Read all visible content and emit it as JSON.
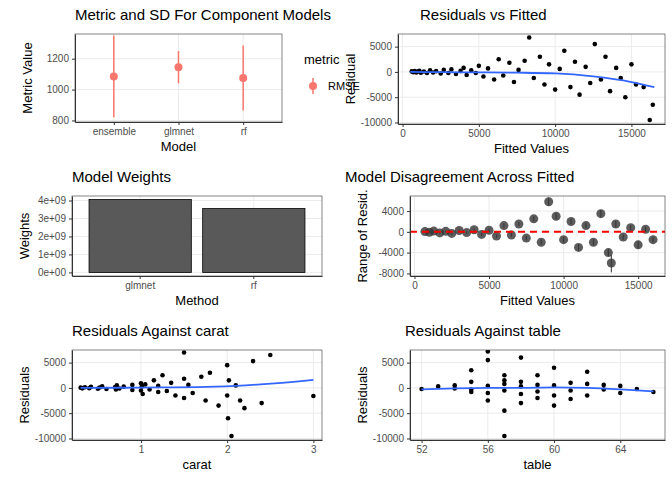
{
  "chart_data": [
    {
      "type": "pointrange",
      "title": "Metric and SD For Component Models",
      "x_label": "Model",
      "y_label": "Metric Value",
      "categories": [
        "ensemble",
        "glmnet",
        "rf"
      ],
      "series": [
        {
          "name": "RMSE",
          "color": "#f8766d",
          "values": [
            1085,
            1145,
            1075
          ],
          "sd": [
            265,
            105,
            210
          ]
        }
      ],
      "legend_title": "metric",
      "legend": "right",
      "ylim": [
        790,
        1360
      ],
      "yticks": [
        800,
        1000,
        1200
      ],
      "grid": true
    },
    {
      "type": "scatter",
      "title": "Residuals vs Fitted",
      "x_label": "Fitted Values",
      "y_label": "Residual",
      "color": "#000000",
      "x": [
        600,
        700,
        800,
        900,
        1000,
        1100,
        1200,
        1400,
        1600,
        1800,
        2000,
        2200,
        2500,
        2700,
        3000,
        3200,
        3500,
        3800,
        4000,
        4200,
        4500,
        4800,
        5000,
        5300,
        5600,
        6000,
        6300,
        6600,
        7000,
        7300,
        7600,
        8000,
        8300,
        8600,
        9000,
        9300,
        9600,
        10000,
        10300,
        10600,
        11000,
        11300,
        11600,
        12000,
        12300,
        12600,
        13000,
        13300,
        13600,
        14000,
        14300,
        14600,
        15000,
        15300,
        15800,
        16200,
        16400
      ],
      "y": [
        100,
        -50,
        150,
        -100,
        50,
        200,
        -150,
        80,
        -200,
        300,
        -100,
        150,
        -300,
        400,
        -200,
        500,
        -400,
        200,
        800,
        -600,
        300,
        -200,
        1200,
        -900,
        700,
        -1500,
        2500,
        -700,
        1800,
        -2000,
        400,
        2200,
        6800,
        -1200,
        3000,
        -2500,
        1500,
        -3500,
        600,
        4200,
        -3000,
        2000,
        -4500,
        1000,
        -2200,
        5500,
        -1500,
        3000,
        -3800,
        800,
        -1200,
        -5000,
        1500,
        -2500,
        -3000,
        -9500,
        -6500
      ],
      "smooth": {
        "color": "#3366ff",
        "x": [
          500,
          2500,
          5000,
          7500,
          10000,
          12500,
          15000,
          16500
        ],
        "y": [
          0,
          -50,
          -100,
          -150,
          -300,
          -900,
          -2000,
          -3000
        ]
      },
      "xlim": [
        -300,
        17200
      ],
      "xticks": [
        0,
        5000,
        10000,
        15000
      ],
      "ylim": [
        -10300,
        7500
      ],
      "yticks": [
        -10000,
        -5000,
        0,
        5000
      ],
      "grid": true
    },
    {
      "type": "bar",
      "title": "Model Weights",
      "x_label": "Method",
      "y_label": "Weights",
      "color": "#595959",
      "categories": [
        "glmnet",
        "rf"
      ],
      "values": [
        4050000000,
        3550000000
      ],
      "ylim": [
        -200000000,
        4250000000
      ],
      "yticks": [
        {
          "value": 0,
          "label": "0e+00"
        },
        {
          "value": 1000000000,
          "label": "1e+09"
        },
        {
          "value": 2000000000,
          "label": "2e+09"
        },
        {
          "value": 3000000000,
          "label": "3e+09"
        },
        {
          "value": 4000000000,
          "label": "4e+09"
        }
      ],
      "grid": true
    },
    {
      "type": "scatter",
      "title": "Model Disagreement Across Fitted",
      "x_label": "Fitted Values",
      "y_label": "Range of Resid.",
      "color": "#333333",
      "x": [
        700,
        1000,
        1300,
        1700,
        2100,
        2500,
        3000,
        3500,
        4000,
        4500,
        5000,
        5500,
        6000,
        6500,
        7000,
        7500,
        8000,
        8500,
        9000,
        9500,
        10000,
        10500,
        11000,
        11500,
        12000,
        12500,
        13000,
        13200,
        13500,
        14000,
        14500,
        15000,
        15500,
        16000
      ],
      "y": [
        50,
        -100,
        150,
        -200,
        100,
        -300,
        250,
        -150,
        400,
        -500,
        300,
        -800,
        1200,
        -600,
        1500,
        -1200,
        2500,
        -2000,
        5800,
        3000,
        -1500,
        2000,
        -3000,
        1200,
        -2000,
        3500,
        -4000,
        -6000,
        1500,
        -1000,
        800,
        -2500,
        500,
        -1500
      ],
      "ymin": [
        -100,
        -250,
        0,
        -400,
        -100,
        -550,
        50,
        -350,
        150,
        -800,
        0,
        -1100,
        800,
        -950,
        1100,
        -1600,
        2000,
        -2500,
        5000,
        2400,
        -2000,
        1500,
        -3600,
        700,
        -2600,
        2800,
        -4700,
        -7800,
        900,
        -1500,
        300,
        -3200,
        0,
        -2000
      ],
      "ymax": [
        200,
        50,
        300,
        0,
        300,
        -50,
        450,
        50,
        650,
        -200,
        600,
        -500,
        1600,
        -250,
        1900,
        -800,
        3000,
        -1500,
        6600,
        3600,
        -1000,
        2500,
        -2400,
        1700,
        -1400,
        4200,
        -3300,
        -4500,
        2100,
        -500,
        1300,
        -1800,
        1000,
        -1000
      ],
      "hline": {
        "value": 0,
        "color": "#ff0000",
        "line_style": "dashed"
      },
      "xlim": [
        -300,
        16800
      ],
      "xticks": [
        0,
        5000,
        10000,
        15000
      ],
      "ylim": [
        -8500,
        6900
      ],
      "yticks": [
        -8000,
        -4000,
        0,
        4000
      ],
      "grid": true
    },
    {
      "type": "scatter",
      "title": "Residuals Against carat",
      "x_label": "carat",
      "y_label": "Residuals",
      "color": "#000000",
      "x": [
        0.3,
        0.32,
        0.35,
        0.4,
        0.42,
        0.5,
        0.52,
        0.55,
        0.6,
        0.7,
        0.71,
        0.72,
        0.75,
        0.8,
        0.9,
        0.9,
        1.0,
        1.0,
        1.01,
        1.02,
        1.05,
        1.1,
        1.15,
        1.2,
        1.2,
        1.25,
        1.3,
        1.35,
        1.4,
        1.5,
        1.5,
        1.5,
        1.55,
        1.6,
        1.7,
        1.75,
        1.8,
        1.9,
        2.0,
        2.0,
        2.01,
        2.02,
        2.05,
        2.1,
        2.15,
        2.2,
        2.3,
        2.4,
        2.5,
        3.0
      ],
      "y": [
        50,
        -80,
        120,
        -50,
        200,
        -150,
        80,
        300,
        -200,
        150,
        -300,
        500,
        -100,
        250,
        -400,
        600,
        -500,
        900,
        300,
        -1200,
        700,
        -300,
        1500,
        -800,
        400,
        2500,
        -600,
        1000,
        -1500,
        1800,
        -2000,
        7000,
        600,
        -1000,
        2200,
        -2500,
        3000,
        -3500,
        -1500,
        4500,
        -6000,
        1500,
        -9500,
        500,
        -2500,
        -4000,
        5300,
        -3000,
        6500,
        -1600
      ],
      "smooth": {
        "color": "#3366ff",
        "x": [
          0.3,
          0.75,
          1.2,
          1.65,
          2.1,
          2.55,
          3.0
        ],
        "y": [
          0,
          30,
          100,
          150,
          400,
          900,
          1600
        ]
      },
      "xlim": [
        0.2,
        3.1
      ],
      "xticks": [
        1,
        2,
        3
      ],
      "ylim": [
        -10300,
        7500
      ],
      "yticks": [
        -10000,
        -5000,
        0,
        5000
      ],
      "grid": true
    },
    {
      "type": "scatter",
      "title": "Residuals Against table",
      "x_label": "table",
      "y_label": "Residuals",
      "color": "#000000",
      "x": [
        52,
        53,
        54,
        54,
        55,
        55,
        55,
        55,
        56,
        56,
        56,
        56,
        56,
        57,
        57,
        57,
        57,
        57,
        57,
        58,
        58,
        58,
        58,
        58,
        59,
        59,
        59,
        59,
        60,
        60,
        60,
        60,
        61,
        61,
        61,
        62,
        62,
        62,
        63,
        63,
        64,
        64,
        65,
        66
      ],
      "y": [
        -200,
        300,
        -100,
        500,
        -300,
        1200,
        -800,
        3500,
        -2500,
        -1000,
        400,
        5500,
        7200,
        -9500,
        -4500,
        1500,
        -500,
        800,
        2500,
        -3000,
        -1200,
        1200,
        6000,
        300,
        -2000,
        600,
        2500,
        -700,
        -1500,
        4000,
        500,
        -3500,
        1000,
        -500,
        -2200,
        800,
        -1500,
        3200,
        -300,
        600,
        -1000,
        400,
        -200,
        -800
      ],
      "smooth": {
        "color": "#3366ff",
        "x": [
          52,
          54,
          56,
          58,
          60,
          62,
          64,
          66
        ],
        "y": [
          -300,
          -100,
          0,
          0,
          100,
          0,
          -300,
          -700
        ]
      },
      "xlim": [
        51.3,
        66.7
      ],
      "xticks": [
        52,
        56,
        60,
        64
      ],
      "ylim": [
        -10300,
        7500
      ],
      "yticks": [
        -10000,
        -5000,
        0,
        5000
      ],
      "grid": true
    }
  ]
}
